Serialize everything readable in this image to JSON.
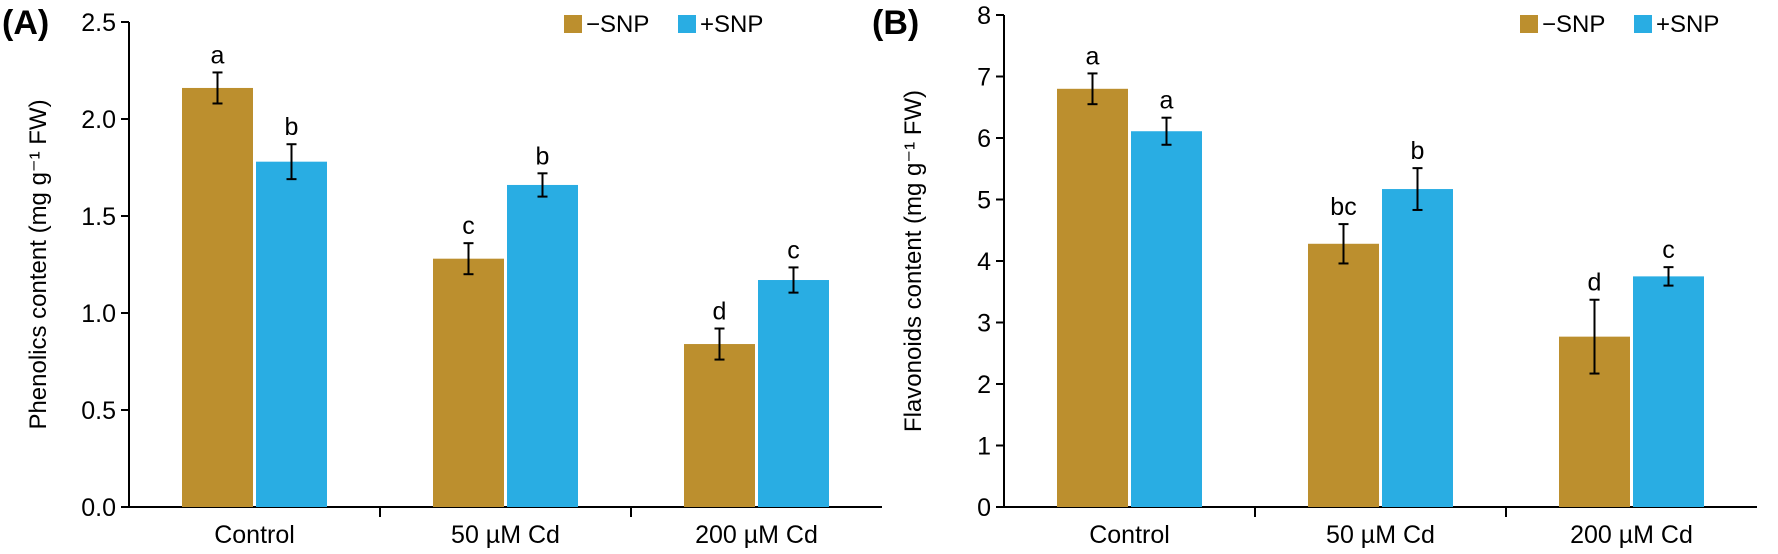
{
  "colors": {
    "minus_snp": "#bc8f2e",
    "plus_snp": "#29ade3"
  },
  "chart_data": [
    {
      "type": "bar",
      "panel_label": "(A)",
      "title": "",
      "xlabel": "",
      "ylabel": "Phenolics content (mg g⁻¹ FW)",
      "ylim": [
        0,
        2.5
      ],
      "yticks": [
        "0.0",
        "0.5",
        "1.0",
        "1.5",
        "2.0",
        "2.5"
      ],
      "ytick_values": [
        0,
        0.5,
        1.0,
        1.5,
        2.0,
        2.5
      ],
      "grid": false,
      "legend_position": "top-right",
      "categories": [
        "Control",
        "50 µM Cd",
        "200 µM Cd"
      ],
      "series": [
        {
          "name": "−SNP",
          "values": [
            2.16,
            1.28,
            0.84
          ],
          "errors": [
            0.08,
            0.08,
            0.08
          ],
          "letters": [
            "a",
            "c",
            "d"
          ]
        },
        {
          "name": "+SNP",
          "values": [
            1.78,
            1.66,
            1.17
          ],
          "errors": [
            0.09,
            0.06,
            0.065
          ],
          "letters": [
            "b",
            "b",
            "c"
          ]
        }
      ]
    },
    {
      "type": "bar",
      "panel_label": "(B)",
      "title": "",
      "xlabel": "",
      "ylabel": "Flavonoids content (mg g⁻¹ FW)",
      "ylim": [
        0,
        8
      ],
      "yticks": [
        "0",
        "1",
        "2",
        "3",
        "4",
        "5",
        "6",
        "7",
        "8"
      ],
      "ytick_values": [
        0,
        1,
        2,
        3,
        4,
        5,
        6,
        7,
        8
      ],
      "grid": false,
      "legend_position": "top-right",
      "categories": [
        "Control",
        "50 µM Cd",
        "200 µM Cd"
      ],
      "series": [
        {
          "name": "−SNP",
          "values": [
            6.8,
            4.28,
            2.77
          ],
          "errors": [
            0.25,
            0.32,
            0.6
          ],
          "letters": [
            "a",
            "bc",
            "d"
          ]
        },
        {
          "name": "+SNP",
          "values": [
            6.11,
            5.17,
            3.75
          ],
          "errors": [
            0.22,
            0.34,
            0.15
          ],
          "letters": [
            "a",
            "b",
            "c"
          ]
        }
      ]
    }
  ]
}
